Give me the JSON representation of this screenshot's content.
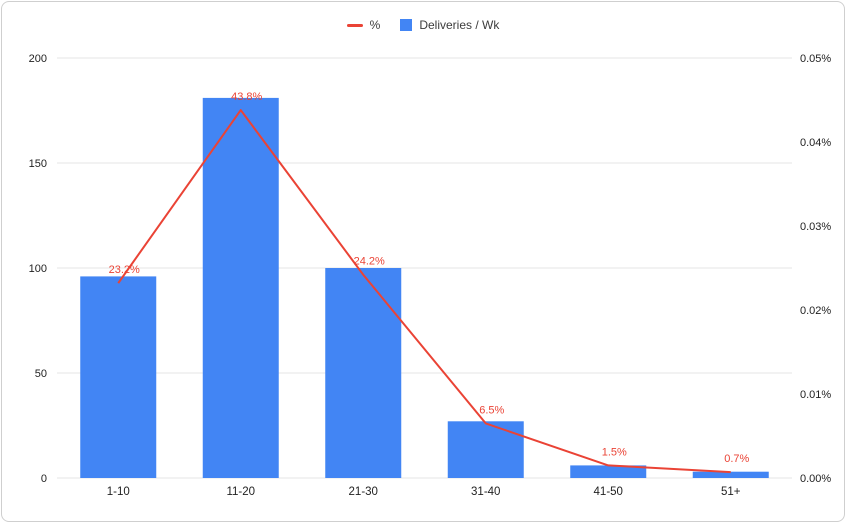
{
  "colors": {
    "bar": "#4285f4",
    "line": "#ea4335",
    "gridline": "#e6e6e6",
    "axis_text": "#222222",
    "frame_border": "#cfcfcf",
    "background": "#ffffff"
  },
  "legend": {
    "items": [
      {
        "label": "%",
        "type": "line",
        "color": "#ea4335"
      },
      {
        "label": "Deliveries / Wk",
        "type": "square",
        "color": "#4285f4"
      }
    ]
  },
  "chart_data": {
    "type": "bar",
    "subtype": "combo-bar-line",
    "title": "",
    "xlabel": "",
    "ylabel_left": "",
    "ylabel_right": "",
    "grid": true,
    "legend_position": "top-center",
    "categories": [
      "1-10",
      "11-20",
      "21-30",
      "31-40",
      "41-50",
      "51+"
    ],
    "series": [
      {
        "name": "Deliveries / Wk",
        "type": "bar",
        "axis": "left",
        "color": "#4285f4",
        "values": [
          96,
          181,
          100,
          27,
          6,
          3
        ]
      },
      {
        "name": "%",
        "type": "line",
        "axis": "right",
        "color": "#ea4335",
        "values_pct": [
          23.2,
          43.8,
          24.2,
          6.5,
          1.5,
          0.7
        ],
        "point_labels": [
          "23.2%",
          "43.8%",
          "24.2%",
          "6.5%",
          "1.5%",
          "0.7%"
        ]
      }
    ],
    "left_axis": {
      "min": 0,
      "max": 200,
      "ticks": [
        0,
        50,
        100,
        150,
        200
      ]
    },
    "right_axis": {
      "min": 0,
      "max": 0.05,
      "ticks": [
        "0.00%",
        "0.01%",
        "0.02%",
        "0.03%",
        "0.04%",
        "0.05%"
      ]
    }
  }
}
